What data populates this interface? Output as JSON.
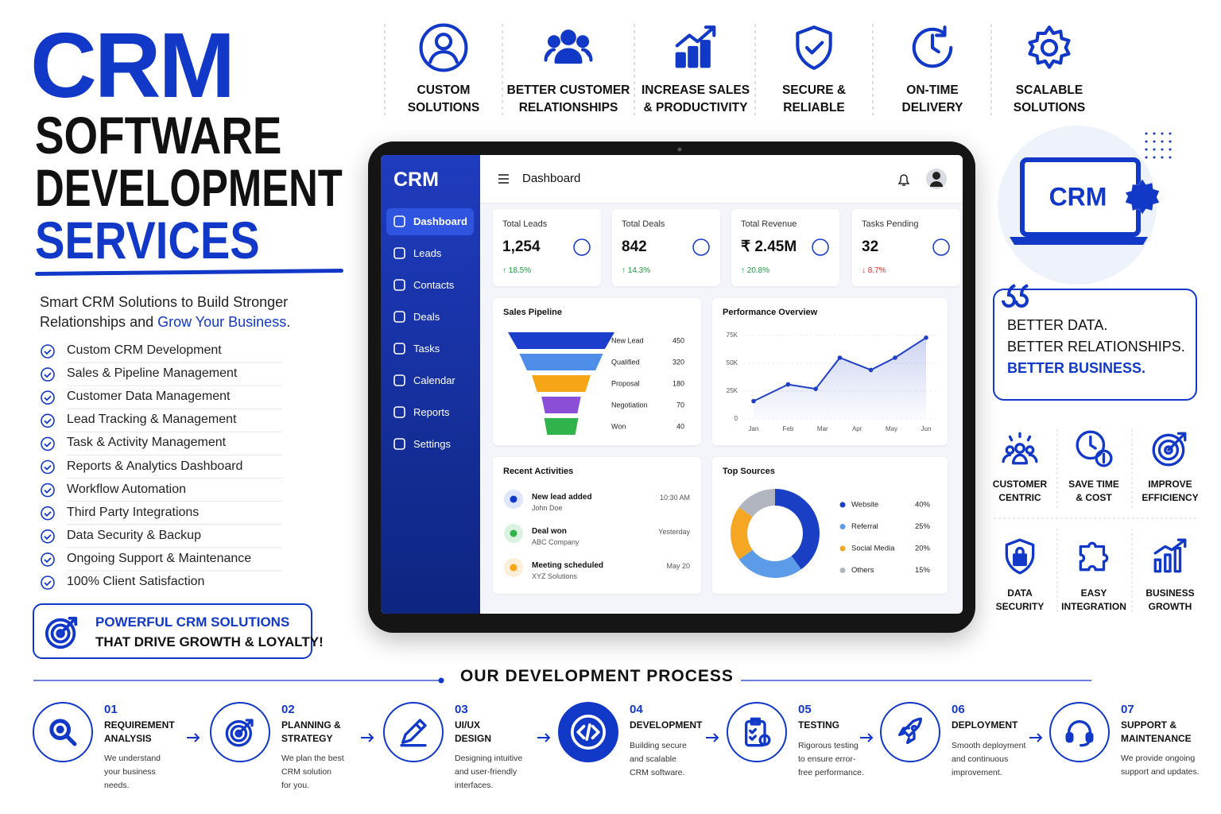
{
  "header": {
    "title": "CRM",
    "subtitle_lines": [
      "SOFTWARE",
      "DEVELOPMENT",
      "SERVICES"
    ]
  },
  "intro": {
    "text": "Smart CRM Solutions to Build Stronger Relationships and",
    "highlight": "Grow Your Business",
    "end": "."
  },
  "services": [
    "Custom CRM Development",
    "Sales & Pipeline Management",
    "Customer Data Management",
    "Lead Tracking & Management",
    "Task & Activity Management",
    "Reports & Analytics Dashboard",
    "Workflow Automation",
    "Third Party Integrations",
    "Data Security & Backup",
    "Ongoing Support & Maintenance",
    "100% Client Satisfaction"
  ],
  "banner": {
    "lines": [
      "POWERFUL CRM SOLUTIONS",
      "THAT DRIVE GROWTH & LOYALTY!"
    ]
  },
  "features": [
    {
      "lines": [
        "CUSTOM",
        "SOLUTIONS"
      ]
    },
    {
      "lines": [
        "BETTER CUSTOMER",
        "RELATIONSHIPS"
      ]
    },
    {
      "lines": [
        "INCREASE SALES",
        "& PRODUCTIVITY"
      ]
    },
    {
      "lines": [
        "SECURE &",
        "RELIABLE"
      ]
    },
    {
      "lines": [
        "ON-TIME",
        "DELIVERY"
      ]
    },
    {
      "lines": [
        "SCALABLE",
        "SOLUTIONS"
      ]
    }
  ],
  "dashboard": {
    "logo": "CRM",
    "menu": [
      "Dashboard",
      "Leads",
      "Contacts",
      "Deals",
      "Tasks",
      "Calendar",
      "Reports",
      "Settings"
    ],
    "page_title": "Dashboard",
    "kpis": [
      {
        "label": "Total Leads",
        "value": "1,254",
        "change": "↑ 18.5%"
      },
      {
        "label": "Total Deals",
        "value": "842",
        "change": "↑ 14.3%"
      },
      {
        "label": "Total Revenue",
        "value": "₹ 2.45M",
        "change": "↑ 20.8%"
      },
      {
        "label": "Tasks Pending",
        "value": "32",
        "change": "↓ 8.7%"
      }
    ],
    "activities": {
      "title": "Recent Activities",
      "items": [
        {
          "title": "New lead added",
          "sub": "John Doe",
          "time": "10:30 AM"
        },
        {
          "title": "Deal won",
          "sub": "ABC Company",
          "time": "Yesterday"
        },
        {
          "title": "Meeting scheduled",
          "sub": "XYZ Solutions",
          "time": "May 20"
        }
      ]
    }
  },
  "chart_data": [
    {
      "type": "funnel",
      "title": "Sales Pipeline",
      "categories": [
        "New Lead",
        "Qualified",
        "Proposal",
        "Negotiation",
        "Won"
      ],
      "values": [
        450,
        320,
        180,
        70,
        40
      ],
      "colors": [
        "#1b3fcc",
        "#4f8ee8",
        "#f5a516",
        "#8a4fd6",
        "#2fb34a"
      ]
    },
    {
      "type": "line",
      "title": "Performance Overview",
      "x": [
        0,
        1,
        1.8,
        2.5,
        3.4,
        4.1,
        5
      ],
      "values": [
        16000,
        31000,
        27000,
        55000,
        44000,
        55000,
        73000
      ],
      "xlim": [
        0,
        5
      ],
      "xticks": [
        {
          "value": 0,
          "label": "Jan"
        },
        {
          "value": 1,
          "label": "Feb"
        },
        {
          "value": 2,
          "label": "Mar"
        },
        {
          "value": 3,
          "label": "Apr"
        },
        {
          "value": 4,
          "label": "May"
        },
        {
          "value": 5,
          "label": "Jun"
        }
      ],
      "ylim": [
        0,
        80000
      ],
      "yticks": [
        0,
        {
          "value": 25000,
          "label": "25K"
        },
        {
          "value": 50000,
          "label": "50K"
        },
        {
          "value": 75000,
          "label": "75K"
        }
      ],
      "color": "#1f3fc4",
      "grid": true
    },
    {
      "type": "pie",
      "title": "Top Sources",
      "donut": true,
      "categories": [
        "Website",
        "Referral",
        "Social Media",
        "Others"
      ],
      "values": [
        40,
        25,
        20,
        15
      ],
      "value_labels": [
        "40%",
        "25%",
        "20%",
        "15%"
      ],
      "colors": [
        "#1a3fc4",
        "#5b9be8",
        "#f5a623",
        "#b0b5bf"
      ]
    }
  ],
  "illustration": {
    "label": "CRM"
  },
  "quote": {
    "lines": [
      "BETTER DATA.",
      "BETTER RELATIONSHIPS.",
      "BETTER BUSINESS."
    ]
  },
  "benefits": [
    {
      "lines": [
        "CUSTOMER",
        "CENTRIC"
      ]
    },
    {
      "lines": [
        "SAVE TIME",
        "& COST"
      ]
    },
    {
      "lines": [
        "IMPROVE",
        "EFFICIENCY"
      ]
    },
    {
      "lines": [
        "DATA",
        "SECURITY"
      ]
    },
    {
      "lines": [
        "EASY",
        "INTEGRATION"
      ]
    },
    {
      "lines": [
        "BUSINESS",
        "GROWTH"
      ]
    }
  ],
  "process": {
    "title": "OUR DEVELOPMENT PROCESS",
    "steps": [
      {
        "number": "01",
        "title": [
          "REQUIREMENT",
          "ANALYSIS"
        ],
        "desc": [
          "We understand",
          "your business",
          "needs."
        ]
      },
      {
        "number": "02",
        "title": [
          "PLANNING &",
          "STRATEGY"
        ],
        "desc": [
          "We plan the best",
          "CRM solution",
          "for you."
        ]
      },
      {
        "number": "03",
        "title": [
          "UI/UX",
          "DESIGN"
        ],
        "desc": [
          "Designing intuitive",
          "and user-friendly",
          "interfaces."
        ]
      },
      {
        "number": "04",
        "title": [
          "DEVELOPMENT"
        ],
        "desc": [
          "Building secure",
          "and scalable",
          "CRM software."
        ]
      },
      {
        "number": "05",
        "title": [
          "TESTING"
        ],
        "desc": [
          "Rigorous testing",
          "to ensure error-",
          "free performance."
        ]
      },
      {
        "number": "06",
        "title": [
          "DEPLOYMENT"
        ],
        "desc": [
          "Smooth deployment",
          "and continuous",
          "improvement."
        ]
      },
      {
        "number": "07",
        "title": [
          "SUPPORT &",
          "MAINTENANCE"
        ],
        "desc": [
          "We provide ongoing",
          "support and updates."
        ]
      }
    ]
  }
}
